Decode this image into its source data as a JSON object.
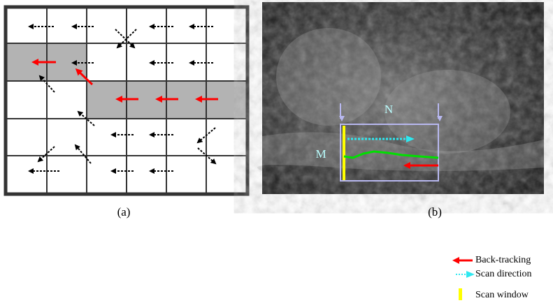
{
  "panel_a": {
    "caption": "(a)"
  },
  "panel_b": {
    "caption": "(b)",
    "label_m": "M",
    "label_n": "N"
  },
  "legend": {
    "items": [
      "Back-tracking",
      "Scan direction",
      "Scan window"
    ]
  }
}
